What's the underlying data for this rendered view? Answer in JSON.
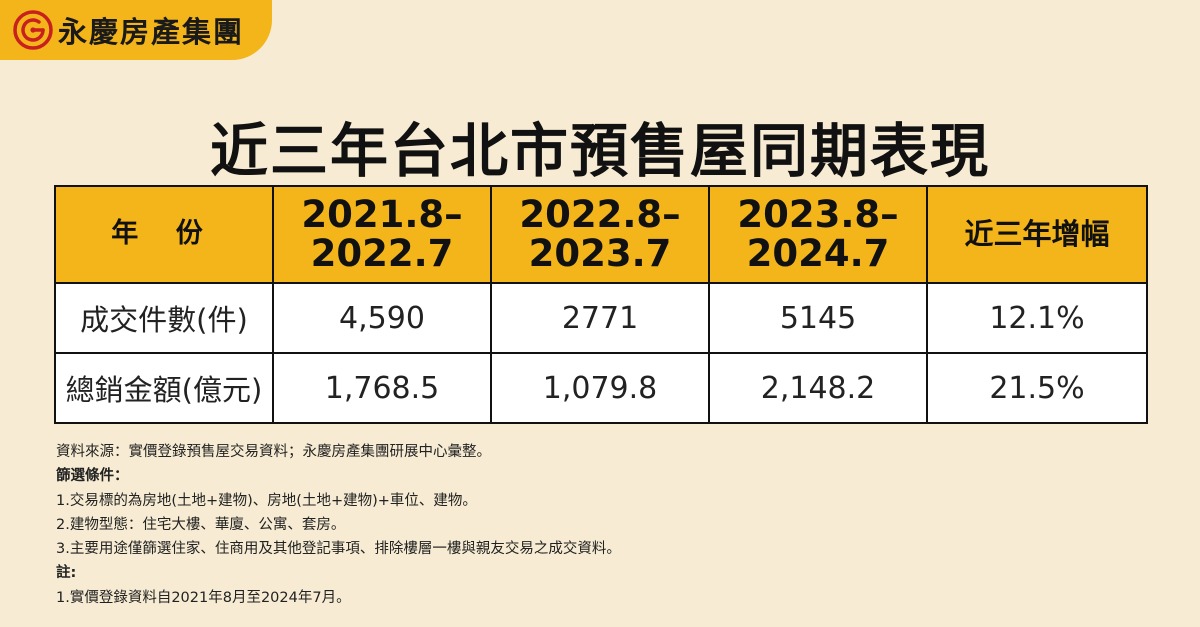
{
  "brand": {
    "name": "永慶房產集團",
    "accent_color": "#f4b51b",
    "background_color": "#f7ecd3",
    "logo_icon": "spiral-g-icon"
  },
  "title": "近三年台北市預售屋同期表現",
  "table": {
    "header": {
      "year_label": "年 份",
      "periods": [
        {
          "line1": "2021.8–",
          "line2": "2022.7"
        },
        {
          "line1": "2022.8–",
          "line2": "2023.7"
        },
        {
          "line1": "2023.8–",
          "line2": "2024.7"
        }
      ],
      "increase_label": "近三年增幅"
    },
    "rows": [
      {
        "label": "成交件數(件)",
        "values": [
          "4,590",
          "2771",
          "5145"
        ],
        "increase": "12.1%"
      },
      {
        "label": "總銷金額(億元)",
        "values": [
          "1,768.5",
          "1,079.8",
          "2,148.2"
        ],
        "increase": "21.5%"
      }
    ]
  },
  "chart_data": {
    "type": "table",
    "title": "近三年台北市預售屋同期表現",
    "columns": [
      "年 份",
      "2021.8–2022.7",
      "2022.8–2023.7",
      "2023.8–2024.7",
      "近三年增幅"
    ],
    "rows": [
      [
        "成交件數(件)",
        "4,590",
        "2771",
        "5145",
        "12.1%"
      ],
      [
        "總銷金額(億元)",
        "1,768.5",
        "1,079.8",
        "2,148.2",
        "21.5%"
      ]
    ]
  },
  "notes": {
    "source": "資料來源：實價登錄預售屋交易資料；永慶房產集團研展中心彙整。",
    "filter_heading": "篩選條件：",
    "filters": [
      "1.交易標的為房地(土地+建物)、房地(土地+建物)+車位、建物。",
      "2.建物型態：住宅大樓、華廈、公寓、套房。",
      "3.主要用途僅篩選住家、住商用及其他登記事項、排除樓層一樓與親友交易之成交資料。"
    ],
    "note_heading": "註:",
    "notes_list": [
      "1.實價登錄資料自2021年8月至2024年7月。"
    ]
  }
}
